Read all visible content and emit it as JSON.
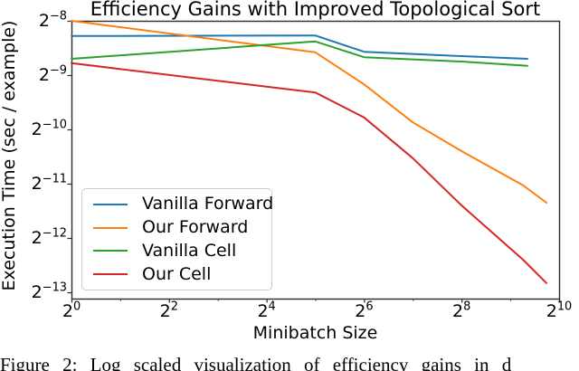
{
  "figure": {
    "caption_visible_text": "Figure 2: Log scaled visualization of efficiency gains in d",
    "background_color": "#ffffff"
  },
  "chart_data": {
    "type": "line",
    "title": "Efficiency Gains with Improved Topological Sort",
    "xlabel": "Minibatch Size",
    "ylabel": "Execution Time (sec / example)",
    "x_scale": "log2",
    "y_scale": "log2",
    "xlim": [
      "2^0",
      "2^10"
    ],
    "ylim": [
      "2^-13.1",
      "2^-8"
    ],
    "grid": false,
    "legend_position": "lower-left",
    "tick_base": "2",
    "x_tick_exps": [
      0,
      2,
      4,
      6,
      8,
      10
    ],
    "x_minor_tick_exps": [
      1,
      3,
      5,
      7,
      9
    ],
    "y_tick_exps": [
      -8,
      -9,
      -10,
      -11,
      -12,
      -13
    ],
    "points_format": "pairs of log2 exponents [x_exp, y_exp]; plotted value = 2^exp",
    "series": [
      {
        "name": "Vanilla Forward",
        "color": "#1f77b4",
        "points": [
          [
            0,
            -8.28
          ],
          [
            5,
            -8.27
          ],
          [
            6,
            -8.57
          ],
          [
            8,
            -8.65
          ],
          [
            9.35,
            -8.7
          ]
        ]
      },
      {
        "name": "Our Forward",
        "color": "#ff7f0e",
        "points": [
          [
            0,
            -8.0
          ],
          [
            5,
            -8.58
          ],
          [
            6,
            -9.17
          ],
          [
            7,
            -9.87
          ],
          [
            8,
            -10.4
          ],
          [
            9.26,
            -11.03
          ],
          [
            9.74,
            -11.35
          ]
        ]
      },
      {
        "name": "Vanilla Cell",
        "color": "#2ca02c",
        "points": [
          [
            0,
            -8.7
          ],
          [
            5,
            -8.38
          ],
          [
            6,
            -8.67
          ],
          [
            8,
            -8.75
          ],
          [
            9.35,
            -8.83
          ]
        ]
      },
      {
        "name": "Our Cell",
        "color": "#d62728",
        "points": [
          [
            0,
            -8.78
          ],
          [
            5,
            -9.32
          ],
          [
            6,
            -9.78
          ],
          [
            7,
            -10.53
          ],
          [
            8,
            -11.4
          ],
          [
            9.26,
            -12.4
          ],
          [
            9.74,
            -12.83
          ]
        ]
      }
    ],
    "spine_color": "#2b2b2b"
  }
}
